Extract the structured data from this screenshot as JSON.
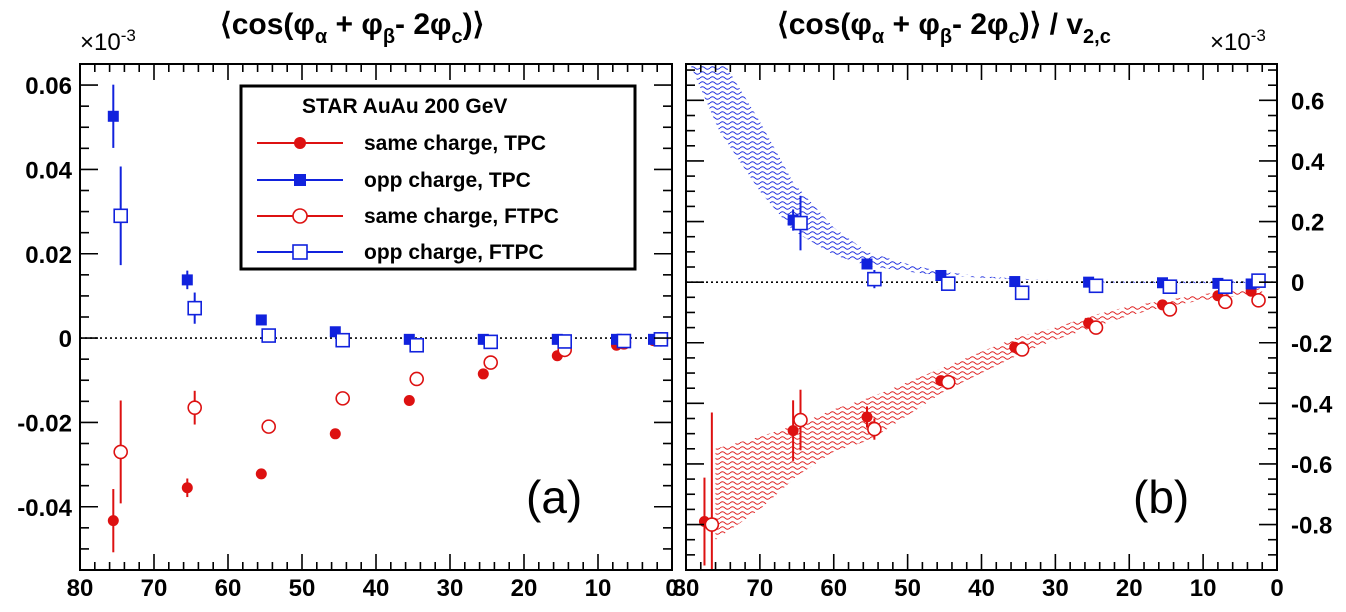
{
  "colors": {
    "same": "#dd1111",
    "opp": "#1122dd",
    "axis": "#000000"
  },
  "chart_data": [
    {
      "type": "scatter",
      "panel_label": "(a)",
      "title": "⟨cos(φα + φβ- 2φc)⟩",
      "title_parts": {
        "open": "⟨cos(φ",
        "sub1": "α",
        "mid1": " + φ",
        "sub2": "β",
        "mid2": "- 2φ",
        "sub3": "c",
        "close": ")⟩"
      },
      "multiplier": {
        "base": "×10",
        "exp": "-3"
      },
      "xlim": [
        80,
        0
      ],
      "ylim": [
        -0.055,
        0.065
      ],
      "x_ticks": [
        80,
        70,
        60,
        50,
        40,
        30,
        20,
        10,
        0
      ],
      "y_ticks": [
        0.06,
        0.04,
        0.02,
        0,
        -0.02,
        -0.04
      ],
      "y_tick_labels": [
        "0.06",
        "0.04",
        "0.02",
        "0",
        "-0.02",
        "-0.04"
      ],
      "x_tick_labels": [
        "80",
        "70",
        "60",
        "50",
        "40",
        "30",
        "20",
        "10",
        "0"
      ],
      "legend": {
        "title": "STAR  AuAu 200 GeV",
        "entries": [
          "same charge, TPC",
          "opp charge, TPC",
          "same charge, FTPC",
          "opp charge, FTPC"
        ]
      },
      "series": [
        {
          "name": "same charge, TPC",
          "marker": "filled-circle",
          "color": "same",
          "points": [
            {
              "x": 75.5,
              "y": -0.0433,
              "err": 0.0075
            },
            {
              "x": 65.5,
              "y": -0.0355,
              "err": 0.0022
            },
            {
              "x": 55.5,
              "y": -0.0322,
              "err": 0.0008
            },
            {
              "x": 45.5,
              "y": -0.0227,
              "err": 0.0005
            },
            {
              "x": 35.5,
              "y": -0.0148,
              "err": 0.0004
            },
            {
              "x": 25.5,
              "y": -0.0085,
              "err": 0.0003
            },
            {
              "x": 15.5,
              "y": -0.0042,
              "err": 0.0003
            },
            {
              "x": 7.5,
              "y": -0.0017,
              "err": 0.0002
            },
            {
              "x": 2.5,
              "y": -0.0006,
              "err": 0.0002
            }
          ]
        },
        {
          "name": "opp charge, TPC",
          "marker": "filled-square",
          "color": "opp",
          "points": [
            {
              "x": 75.5,
              "y": 0.0526,
              "err": 0.0075
            },
            {
              "x": 65.5,
              "y": 0.0138,
              "err": 0.0022
            },
            {
              "x": 55.5,
              "y": 0.0043,
              "err": 0.0008
            },
            {
              "x": 45.5,
              "y": 0.0015,
              "err": 0.0005
            },
            {
              "x": 35.5,
              "y": -0.0003,
              "err": 0.0004
            },
            {
              "x": 25.5,
              "y": -0.0003,
              "err": 0.0003
            },
            {
              "x": 15.5,
              "y": -0.0003,
              "err": 0.0003
            },
            {
              "x": 7.5,
              "y": -0.0003,
              "err": 0.0002
            },
            {
              "x": 2.5,
              "y": -0.0003,
              "err": 0.0002
            }
          ]
        },
        {
          "name": "same charge, FTPC",
          "marker": "open-circle",
          "color": "same",
          "points": [
            {
              "x": 74.5,
              "y": -0.027,
              "err": 0.0122
            },
            {
              "x": 64.5,
              "y": -0.0165,
              "err": 0.004
            },
            {
              "x": 54.5,
              "y": -0.021,
              "err": 0.0016
            },
            {
              "x": 44.5,
              "y": -0.0143,
              "err": 0.0008
            },
            {
              "x": 34.5,
              "y": -0.0097,
              "err": 0.0006
            },
            {
              "x": 24.5,
              "y": -0.0058,
              "err": 0.0005
            },
            {
              "x": 14.5,
              "y": -0.0028,
              "err": 0.0004
            },
            {
              "x": 6.5,
              "y": -0.001,
              "err": 0.0003
            },
            {
              "x": 1.5,
              "y": -0.0003,
              "err": 0.0003
            }
          ]
        },
        {
          "name": "opp charge, FTPC",
          "marker": "open-square",
          "color": "opp",
          "points": [
            {
              "x": 74.5,
              "y": 0.029,
              "err": 0.0117
            },
            {
              "x": 64.5,
              "y": 0.0071,
              "err": 0.0037
            },
            {
              "x": 54.5,
              "y": 0.0006,
              "err": 0.0016
            },
            {
              "x": 44.5,
              "y": -0.0005,
              "err": 0.0008
            },
            {
              "x": 34.5,
              "y": -0.0017,
              "err": 0.0006
            },
            {
              "x": 24.5,
              "y": -0.0009,
              "err": 0.0005
            },
            {
              "x": 14.5,
              "y": -0.0008,
              "err": 0.0004
            },
            {
              "x": 6.5,
              "y": -0.0007,
              "err": 0.0003
            },
            {
              "x": 1.5,
              "y": -0.0003,
              "err": 0.0003
            }
          ]
        }
      ]
    },
    {
      "type": "scatter",
      "panel_label": "(b)",
      "title": "⟨cos(φα + φβ- 2φc)⟩ / v2,c",
      "title_parts": {
        "open": "⟨cos(φ",
        "sub1": "α",
        "mid1": " + φ",
        "sub2": "β",
        "mid2": "- 2φ",
        "sub3": "c",
        "close": ")⟩ / v",
        "sub4": "2,c"
      },
      "multiplier": {
        "base": "×10",
        "exp": "-3"
      },
      "xlim": [
        80,
        0
      ],
      "ylim": [
        -0.95,
        0.72
      ],
      "x_ticks": [
        80,
        70,
        60,
        50,
        40,
        30,
        20,
        10,
        0
      ],
      "x_tick_labels": [
        "80",
        "70",
        "60",
        "50",
        "40",
        "30",
        "20",
        "10",
        "0"
      ],
      "y_ticks": [
        0.6,
        0.4,
        0.2,
        0,
        -0.2,
        -0.4,
        -0.6,
        -0.8
      ],
      "y_tick_labels": [
        "0.6",
        "0.4",
        "0.2",
        "0",
        "-0.2",
        "-0.4",
        "-0.6",
        "-0.8"
      ],
      "bands": [
        {
          "name": "opp charge band",
          "color": "opp",
          "x": [
            80,
            75.5,
            70,
            65.5,
            60,
            55.5,
            50,
            45.5,
            40,
            35.5,
            30,
            25,
            15,
            8,
            2
          ],
          "low": [
            0.75,
            0.5,
            0.3,
            0.17,
            0.09,
            0.055,
            0.035,
            0.022,
            0.015,
            0.01,
            0.005,
            0.0,
            -0.003,
            -0.003,
            -0.002
          ],
          "high": [
            0.75,
            0.75,
            0.53,
            0.33,
            0.18,
            0.1,
            0.06,
            0.035,
            0.02,
            0.012,
            0.006,
            0.003,
            0.002,
            0.003,
            0.003
          ]
        },
        {
          "name": "same charge band",
          "color": "same",
          "x": [
            76,
            70,
            65,
            60,
            55,
            50,
            45,
            40,
            35,
            30,
            25,
            20,
            15,
            10,
            7,
            2
          ],
          "low": [
            -0.85,
            -0.75,
            -0.64,
            -0.56,
            -0.52,
            -0.44,
            -0.36,
            -0.3,
            -0.24,
            -0.19,
            -0.15,
            -0.11,
            -0.08,
            -0.06,
            -0.05,
            -0.04
          ],
          "high": [
            -0.55,
            -0.51,
            -0.47,
            -0.42,
            -0.38,
            -0.33,
            -0.28,
            -0.23,
            -0.18,
            -0.15,
            -0.11,
            -0.08,
            -0.06,
            -0.04,
            -0.03,
            -0.02
          ]
        }
      ],
      "series": [
        {
          "name": "same charge, TPC",
          "marker": "filled-circle",
          "color": "same",
          "points": [
            {
              "x": 77.5,
              "y": -0.79,
              "err": 0.145
            },
            {
              "x": 65.5,
              "y": -0.49,
              "err": 0.1
            },
            {
              "x": 55.5,
              "y": -0.445,
              "err": 0.035
            },
            {
              "x": 45.5,
              "y": -0.325,
              "err": 0.015
            },
            {
              "x": 35.5,
              "y": -0.215,
              "err": 0.01
            },
            {
              "x": 25.5,
              "y": -0.135,
              "err": 0.008
            },
            {
              "x": 15.5,
              "y": -0.075,
              "err": 0.006
            },
            {
              "x": 8.0,
              "y": -0.045,
              "err": 0.005
            },
            {
              "x": 3.5,
              "y": -0.03,
              "err": 0.005
            }
          ]
        },
        {
          "name": "opp charge, TPC",
          "marker": "filled-square",
          "color": "opp",
          "points": [
            {
              "x": 65.5,
              "y": 0.205,
              "err": 0.035
            },
            {
              "x": 55.5,
              "y": 0.06,
              "err": 0.012
            },
            {
              "x": 45.5,
              "y": 0.022,
              "err": 0.008
            },
            {
              "x": 35.5,
              "y": 0.002,
              "err": 0.006
            },
            {
              "x": 25.5,
              "y": 0.0,
              "err": 0.005
            },
            {
              "x": 15.5,
              "y": -0.002,
              "err": 0.005
            },
            {
              "x": 8.0,
              "y": -0.004,
              "err": 0.004
            },
            {
              "x": 3.5,
              "y": -0.006,
              "err": 0.004
            }
          ]
        },
        {
          "name": "same charge, FTPC",
          "marker": "open-circle",
          "color": "same",
          "points": [
            {
              "x": 76.5,
              "y": -0.8,
              "err": 0.37
            },
            {
              "x": 64.5,
              "y": -0.455,
              "err": 0.1
            },
            {
              "x": 54.5,
              "y": -0.485,
              "err": 0.035
            },
            {
              "x": 44.5,
              "y": -0.33,
              "err": 0.015
            },
            {
              "x": 34.5,
              "y": -0.222,
              "err": 0.012
            },
            {
              "x": 24.5,
              "y": -0.15,
              "err": 0.01
            },
            {
              "x": 14.5,
              "y": -0.09,
              "err": 0.008
            },
            {
              "x": 7.0,
              "y": -0.065,
              "err": 0.006
            },
            {
              "x": 2.5,
              "y": -0.06,
              "err": 0.006
            }
          ]
        },
        {
          "name": "opp charge, FTPC",
          "marker": "open-square",
          "color": "opp",
          "points": [
            {
              "x": 64.5,
              "y": 0.195,
              "err": 0.09
            },
            {
              "x": 54.5,
              "y": 0.01,
              "err": 0.03
            },
            {
              "x": 44.5,
              "y": -0.005,
              "err": 0.012
            },
            {
              "x": 34.5,
              "y": -0.035,
              "err": 0.01
            },
            {
              "x": 24.5,
              "y": -0.012,
              "err": 0.008
            },
            {
              "x": 14.5,
              "y": -0.015,
              "err": 0.007
            },
            {
              "x": 7.0,
              "y": -0.015,
              "err": 0.006
            },
            {
              "x": 2.5,
              "y": 0.005,
              "err": 0.006
            }
          ]
        }
      ]
    }
  ]
}
